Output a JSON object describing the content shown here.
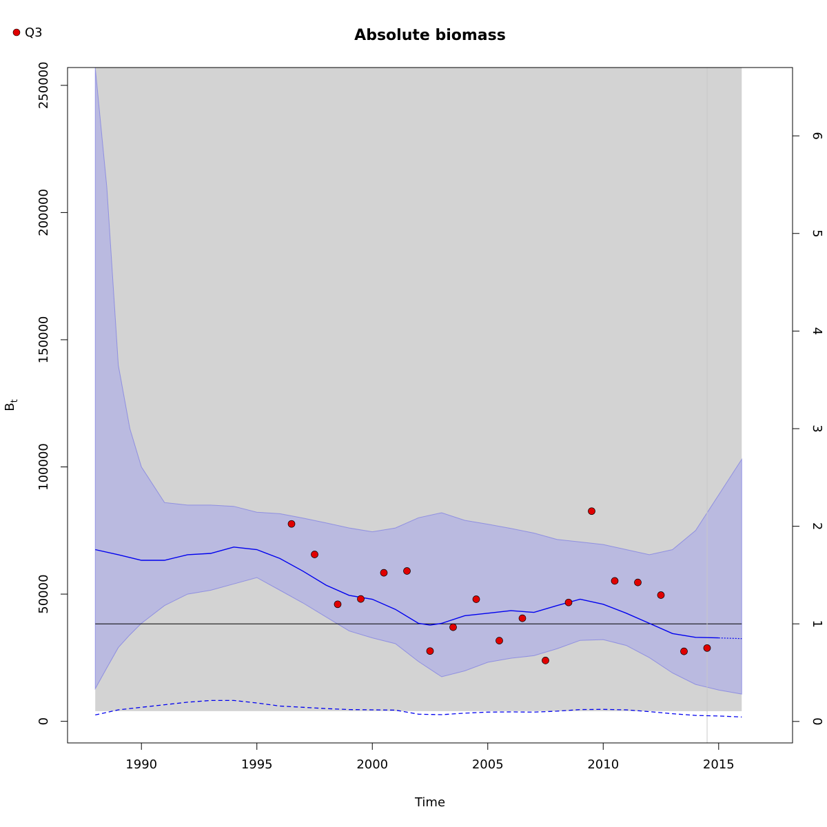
{
  "chart_data": {
    "type": "line",
    "title": "Absolute biomass",
    "xlabel": "Time",
    "ylabel": "B",
    "ylabel_subscript": "t",
    "xlim": [
      1986.8,
      2018.2
    ],
    "ylim": [
      -8500,
      257000
    ],
    "y2lim": [
      -0.22,
      6.7
    ],
    "x_ticks": [
      1990,
      1995,
      2000,
      2005,
      2010,
      2015
    ],
    "y_ticks": [
      0,
      50000,
      100000,
      150000,
      200000,
      250000
    ],
    "y2_ticks": [
      0,
      1,
      2,
      3,
      4,
      5,
      6
    ],
    "legend": {
      "position": "top-left",
      "entries": [
        {
          "label": "Q3",
          "color": "#e00000"
        }
      ]
    },
    "reference_line_y": 38300,
    "vertical_line_x": 2014.5,
    "ribbon_gray": {
      "x": [
        1988,
        2016
      ],
      "lower": 4000,
      "upper": 257000
    },
    "series": [
      {
        "name": "Q3",
        "kind": "points",
        "color": "#e00000",
        "x": [
          1996.5,
          1997.5,
          1998.5,
          1999.5,
          2000.5,
          2001.5,
          2002.5,
          2003.5,
          2004.5,
          2005.5,
          2006.5,
          2007.5,
          2008.5,
          2009.5,
          2010.5,
          2011.5,
          2012.5,
          2013.5,
          2014.5
        ],
        "y": [
          77600,
          65600,
          46000,
          48100,
          58400,
          59100,
          27600,
          37000,
          48000,
          31700,
          40500,
          23900,
          46700,
          82600,
          55200,
          54600,
          49600,
          27500,
          28800
        ]
      },
      {
        "name": "",
        "kind": "line",
        "color": "#0000ee",
        "x": [
          1988,
          1989,
          1990,
          1991,
          1992,
          1993,
          1994,
          1995,
          1996,
          1997,
          1998,
          1999,
          2000,
          2001,
          2002,
          2002.5,
          2003,
          2004,
          2005,
          2006,
          2007,
          2008,
          2009,
          2010,
          2011,
          2012,
          2013,
          2014,
          2015
        ],
        "y": [
          67500,
          65500,
          63300,
          63300,
          65500,
          66000,
          68500,
          67500,
          64000,
          59000,
          53500,
          49500,
          48000,
          44000,
          38500,
          37800,
          38500,
          41500,
          42500,
          43500,
          42800,
          45500,
          48000,
          46000,
          42500,
          38500,
          34500,
          33000,
          32800
        ]
      },
      {
        "name": "",
        "kind": "projection",
        "color": "#0000ee",
        "x": [
          2015,
          2016
        ],
        "y": [
          32800,
          32500
        ]
      },
      {
        "name": "",
        "kind": "dashed",
        "color": "#0000ee",
        "x": [
          1988,
          1989,
          1990,
          1991,
          1992,
          1993,
          1994,
          1995,
          1996,
          1997,
          1998,
          1999,
          2000,
          2001,
          2002,
          2003,
          2004,
          2005,
          2006,
          2007,
          2008,
          2009,
          2010,
          2011,
          2012,
          2013,
          2014,
          2015,
          2016
        ],
        "y": [
          2500,
          4500,
          5500,
          6500,
          7500,
          8200,
          8200,
          7200,
          6000,
          5500,
          5000,
          4600,
          4500,
          4400,
          2800,
          2600,
          3200,
          3600,
          3700,
          3600,
          4000,
          4600,
          4700,
          4500,
          3800,
          3000,
          2300,
          2100,
          1700
        ]
      }
    ],
    "ci_band": {
      "color": "#8080ff",
      "x": [
        1988,
        1988.5,
        1989,
        1989.5,
        1990,
        1991,
        1992,
        1993,
        1994,
        1995,
        1996,
        1997,
        1998,
        1999,
        2000,
        2001,
        2002,
        2003,
        2004,
        2005,
        2006,
        2007,
        2008,
        2009,
        2010,
        2011,
        2012,
        2013,
        2014,
        2015,
        2016
      ],
      "upper": [
        257000,
        210000,
        140000,
        115000,
        100000,
        86000,
        85000,
        85000,
        84500,
        82200,
        81600,
        79900,
        78000,
        76000,
        74500,
        76000,
        80000,
        82000,
        79000,
        77500,
        75800,
        74000,
        71500,
        70500,
        69500,
        67500,
        65500,
        67500,
        75000,
        89000,
        103000
      ],
      "lower": [
        12800,
        21000,
        29000,
        34000,
        38500,
        45500,
        50000,
        51500,
        54000,
        56500,
        51500,
        46500,
        41000,
        35500,
        32800,
        30500,
        23500,
        17500,
        19800,
        23200,
        24800,
        25800,
        28500,
        31800,
        32100,
        29800,
        25000,
        19000,
        14500,
        12300,
        10700
      ]
    }
  }
}
